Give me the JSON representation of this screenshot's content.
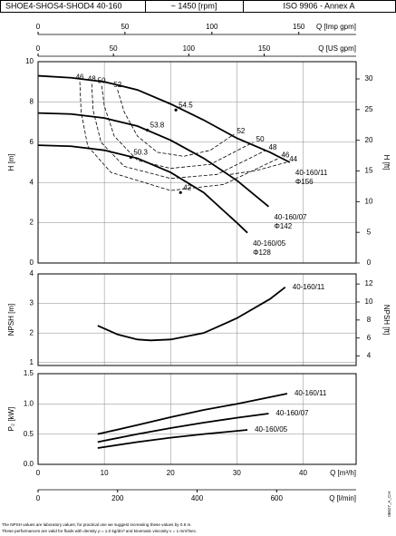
{
  "header": [
    "SHOE4-SHOS4-SHOD4 40-160",
    "~ 1450 [rpm]",
    "ISO 9906 - Annex A"
  ],
  "chart_data": [
    {
      "type": "line",
      "ylabel": "H [m]",
      "y2label": "H [ft]",
      "xlim": [
        0,
        48
      ],
      "xticks": [
        0,
        10,
        20,
        30,
        40
      ],
      "ylim": [
        0,
        10
      ],
      "yticks": [
        0,
        2,
        4,
        6,
        8,
        10
      ],
      "y2lim": [
        0,
        32.81
      ],
      "y2ticks": [
        0,
        5,
        10,
        15,
        20,
        25,
        30
      ],
      "top_axes": [
        {
          "label": "Q [Imp gpm]",
          "xlim": [
            0,
            183
          ],
          "xticks": [
            0,
            50,
            100,
            150
          ]
        },
        {
          "label": "Q [US gpm]",
          "xlim": [
            0,
            211
          ],
          "xticks": [
            0,
            50,
            100,
            150
          ]
        }
      ],
      "series": [
        {
          "name": "40-160/11",
          "note": "Φ156",
          "color": "#000000",
          "x": [
            0,
            5,
            10,
            15,
            20,
            25,
            30,
            35,
            38
          ],
          "values": [
            9.3,
            9.2,
            9.0,
            8.6,
            7.9,
            7.1,
            6.2,
            5.5,
            5.0
          ]
        },
        {
          "name": "40-160/07",
          "note": "Φ142",
          "color": "#000000",
          "x": [
            0,
            5,
            10,
            15,
            20,
            25,
            30,
            34.8
          ],
          "values": [
            7.45,
            7.4,
            7.2,
            6.8,
            6.1,
            5.2,
            4.1,
            2.8
          ]
        },
        {
          "name": "40-160/05",
          "note": "Φ128",
          "color": "#000000",
          "x": [
            0,
            5,
            10,
            15,
            20,
            25,
            30,
            31.6
          ],
          "values": [
            5.85,
            5.8,
            5.6,
            5.2,
            4.5,
            3.5,
            2.0,
            1.5
          ]
        }
      ],
      "efficiency_curves": [
        {
          "name": "52",
          "labels_at": [
            "start",
            "end"
          ],
          "x": [
            12,
            13,
            15,
            18,
            22,
            26,
            29.6
          ],
          "values": [
            8.6,
            7.5,
            6.3,
            5.5,
            5.3,
            5.6,
            6.4
          ]
        },
        {
          "name": "50",
          "labels_at": [
            "start",
            "end"
          ],
          "x": [
            9.6,
            10,
            11.5,
            15,
            20,
            26,
            32.5
          ],
          "values": [
            8.8,
            7.8,
            6.3,
            5.1,
            4.7,
            4.9,
            6.0
          ]
        },
        {
          "name": "48",
          "labels_at": [
            "start",
            "end"
          ],
          "x": [
            8.1,
            8.3,
            9.5,
            13,
            20,
            27,
            34.4
          ],
          "values": [
            8.9,
            7.6,
            6.0,
            4.8,
            4.2,
            4.4,
            5.6
          ]
        },
        {
          "name": "46",
          "labels_at": [
            "start",
            "end"
          ],
          "x": [
            6.3,
            6.5,
            7.5,
            11,
            20,
            28,
            36.3
          ],
          "values": [
            9.0,
            7.5,
            5.8,
            4.5,
            3.6,
            3.9,
            5.2
          ]
        },
        {
          "name": "44",
          "labels_at": [
            "end"
          ],
          "x": [
            29,
            33,
            37.5
          ],
          "values": [
            4.4,
            4.6,
            5.0
          ]
        }
      ],
      "points": [
        {
          "label": "54.5",
          "x": 20.8,
          "y": 7.6
        },
        {
          "label": "53.8",
          "x": 16.5,
          "y": 6.6
        },
        {
          "label": "50.3",
          "x": 14,
          "y": 5.25
        },
        {
          "label": "42",
          "x": 21.5,
          "y": 3.5
        }
      ]
    },
    {
      "type": "line",
      "ylabel": "NPSH [m]",
      "y2label": "NPSH [ft]",
      "xlim": [
        0,
        48
      ],
      "xticks": [
        0,
        10,
        20,
        30,
        40
      ],
      "ylim": [
        0.9,
        4
      ],
      "yticks": [
        1,
        2,
        3,
        4
      ],
      "y2lim": [
        2.95,
        13.12
      ],
      "y2ticks": [
        4,
        6,
        8,
        10,
        12
      ],
      "series": [
        {
          "name": "40-160/11",
          "color": "#000000",
          "x": [
            9,
            12,
            15,
            17,
            20,
            25,
            30,
            35,
            37.3
          ],
          "values": [
            2.25,
            1.95,
            1.78,
            1.75,
            1.78,
            2.0,
            2.5,
            3.15,
            3.55
          ]
        }
      ]
    },
    {
      "type": "line",
      "ylabel": "P₂ [kW]",
      "xlim": [
        0,
        48
      ],
      "xticks": [
        0,
        10,
        20,
        30,
        40
      ],
      "xlabel": "Q [m³/h]",
      "x2lim": [
        0,
        800
      ],
      "x2ticks": [
        0,
        200,
        400,
        600
      ],
      "x2label": "Q [l/min]",
      "ylim": [
        0,
        1.5
      ],
      "yticks": [
        {
          "value": 0,
          "label": "0.0"
        },
        0.5,
        {
          "value": 1,
          "label": "1.0"
        },
        1.5
      ],
      "series": [
        {
          "name": "40-160/11",
          "color": "#000000",
          "x": [
            9,
            15,
            20,
            25,
            30,
            37.6
          ],
          "values": [
            0.5,
            0.65,
            0.78,
            0.9,
            1.0,
            1.17
          ]
        },
        {
          "name": "40-160/07",
          "color": "#000000",
          "x": [
            9,
            15,
            20,
            25,
            30,
            34.8
          ],
          "values": [
            0.37,
            0.5,
            0.6,
            0.69,
            0.77,
            0.84
          ]
        },
        {
          "name": "40-160/05",
          "color": "#000000",
          "x": [
            9,
            15,
            20,
            25,
            31.6
          ],
          "values": [
            0.27,
            0.37,
            0.44,
            0.5,
            0.57
          ]
        }
      ]
    }
  ],
  "footnotes": [
    "The NPSH values are laboratory values; for practical use we suggest increasing these values by 0.5 m.",
    "These performances are valid for fluids with density ρ = 1.0 kg/dm³ and kinematic viscosity ν = 1 mm²/sec."
  ],
  "code": "06627_A_CH"
}
